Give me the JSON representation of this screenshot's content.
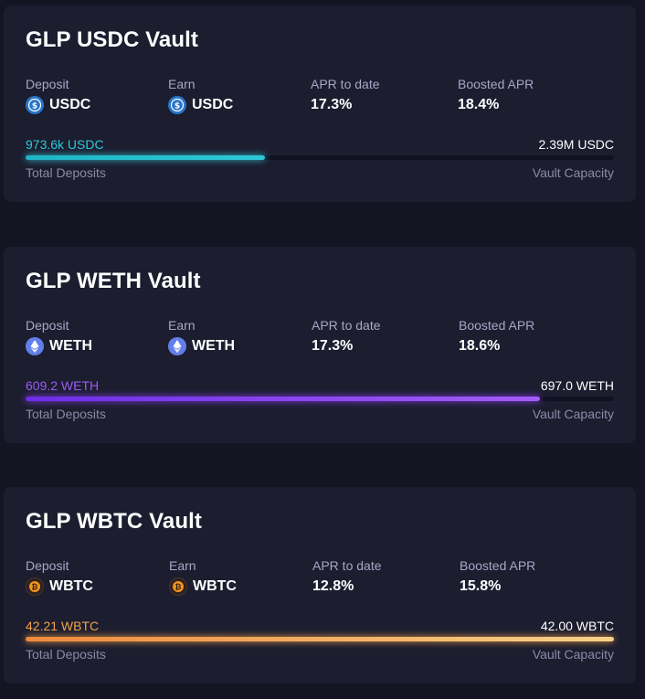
{
  "labels": {
    "deposit": "Deposit",
    "earn": "Earn",
    "apr_to_date": "APR to date",
    "boosted_apr": "Boosted APR",
    "total_deposits": "Total Deposits",
    "vault_capacity": "Vault Capacity"
  },
  "vaults": [
    {
      "title": "GLP USDC Vault",
      "deposit_token": "USDC",
      "earn_token": "USDC",
      "token_icon": "usdc-icon",
      "apr_to_date": "17.3%",
      "boosted_apr": "18.4%",
      "total_deposits": "973.6k USDC",
      "vault_capacity": "2.39M USDC",
      "fill_fraction": 0.407,
      "accent_color": "#2ec9d6"
    },
    {
      "title": "GLP WETH Vault",
      "deposit_token": "WETH",
      "earn_token": "WETH",
      "token_icon": "eth-icon",
      "apr_to_date": "17.3%",
      "boosted_apr": "18.6%",
      "total_deposits": "609.2 WETH",
      "vault_capacity": "697.0 WETH",
      "fill_fraction": 0.874,
      "accent_color": "#8a3cf2"
    },
    {
      "title": "GLP WBTC Vault",
      "deposit_token": "WBTC",
      "earn_token": "WBTC",
      "token_icon": "btc-icon",
      "apr_to_date": "12.8%",
      "boosted_apr": "15.8%",
      "total_deposits": "42.21 WBTC",
      "vault_capacity": "42.00 WBTC",
      "fill_fraction": 1.0,
      "accent_color": "#f0a34a"
    }
  ]
}
